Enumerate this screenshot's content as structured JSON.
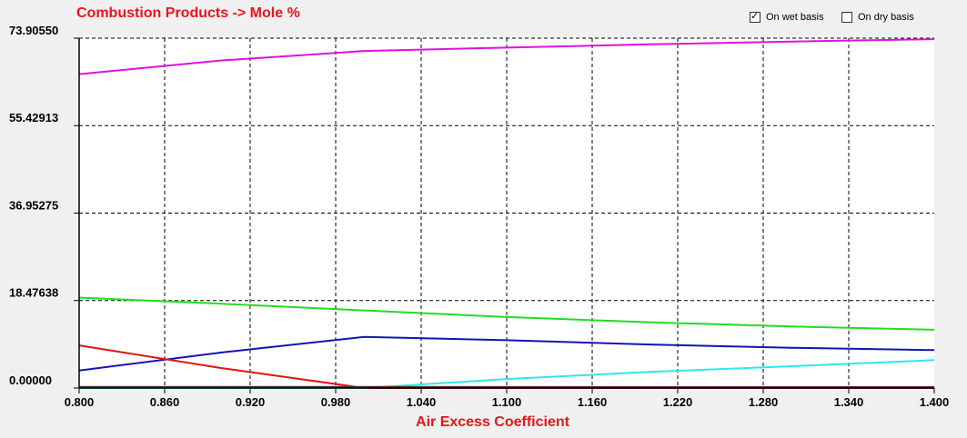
{
  "header": {
    "wet_basis_label": "On wet basis",
    "wet_basis_checked": true,
    "dry_basis_label": "On dry basis",
    "dry_basis_checked": false
  },
  "chart_data": {
    "type": "line",
    "title": "Combustion Products -> Mole %",
    "xlabel": "Air Excess Coefficient",
    "ylabel": "",
    "xlim": [
      0.8,
      1.4
    ],
    "ylim": [
      0.0,
      73.9055
    ],
    "x_ticks": [
      "0.800",
      "0.860",
      "0.920",
      "0.980",
      "1.040",
      "1.100",
      "1.160",
      "1.220",
      "1.280",
      "1.340",
      "1.400"
    ],
    "y_ticks": [
      "0.00000",
      "18.47638",
      "36.95275",
      "55.42913",
      "73.90550"
    ],
    "grid": true,
    "title_color": "#e8141e",
    "series": [
      {
        "color": "#e010e0",
        "x": [
          0.8,
          0.9,
          1.0,
          1.1,
          1.2,
          1.3,
          1.4
        ],
        "y": [
          66.3,
          69.2,
          71.2,
          71.9,
          72.6,
          73.2,
          73.7
        ]
      },
      {
        "color": "#22dd22",
        "x": [
          0.8,
          0.9,
          1.0,
          1.1,
          1.2,
          1.3,
          1.4
        ],
        "y": [
          19.1,
          17.8,
          16.4,
          15.0,
          13.9,
          13.0,
          12.3
        ]
      },
      {
        "color": "#1414b4",
        "x": [
          0.8,
          0.9,
          1.0,
          1.1,
          1.2,
          1.3,
          1.4
        ],
        "y": [
          3.7,
          7.5,
          10.8,
          10.1,
          9.2,
          8.5,
          8.0
        ]
      },
      {
        "color": "#e01414",
        "x": [
          0.8,
          0.9,
          1.0,
          1.1,
          1.2,
          1.3,
          1.4
        ],
        "y": [
          9.0,
          4.2,
          0.0,
          0.0,
          0.0,
          0.0,
          0.0
        ]
      },
      {
        "color": "#2ee8ec",
        "x": [
          0.8,
          0.9,
          1.0,
          1.1,
          1.2,
          1.3,
          1.4
        ],
        "y": [
          0.0,
          0.0,
          0.0,
          1.9,
          3.4,
          4.6,
          5.9
        ]
      },
      {
        "color": "#107c7c",
        "x": [
          0.8,
          1.0,
          1.2,
          1.4
        ],
        "y": [
          0.25,
          0.25,
          0.2,
          0.2
        ]
      },
      {
        "color": "#800000",
        "x": [
          0.8,
          1.0,
          1.2,
          1.4
        ],
        "y": [
          0.12,
          0.12,
          0.12,
          0.12
        ]
      }
    ]
  }
}
